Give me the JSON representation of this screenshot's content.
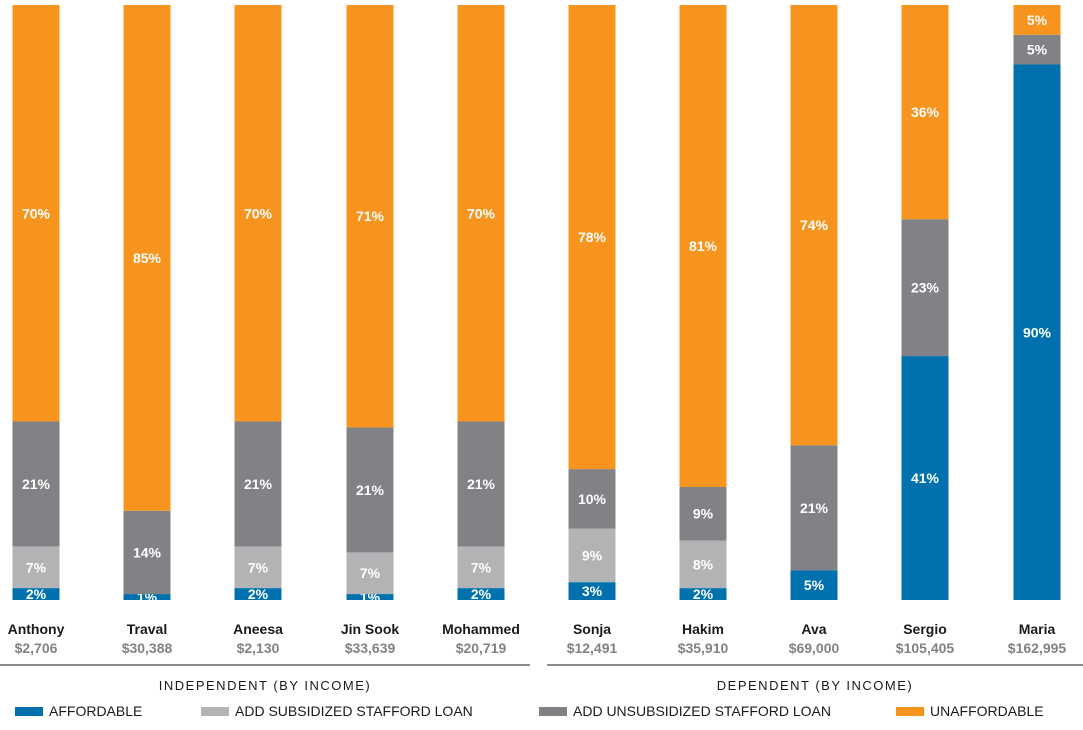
{
  "chart_data": {
    "type": "bar",
    "stacked": true,
    "ylim": [
      0,
      100
    ],
    "series": [
      {
        "name": "AFFORDABLE",
        "key": "affordable",
        "color": "#0071ad",
        "label_color": "#ffffff"
      },
      {
        "name": "ADD SUBSIDIZED STAFFORD LOAN",
        "key": "subsidized",
        "color": "#b1b3b5",
        "label_color": "#ffffff"
      },
      {
        "name": "ADD UNSUBSIDIZED STAFFORD LOAN",
        "key": "unsubsidized",
        "color": "#808285",
        "label_color": "#ffffff"
      },
      {
        "name": "UNAFFORDABLE",
        "key": "unaffordable",
        "color": "#f7941d",
        "label_color": "#ffffff"
      }
    ],
    "students": [
      {
        "name": "Anthony",
        "income": "$2,706",
        "group": "independent",
        "values": [
          2,
          7,
          21,
          70
        ]
      },
      {
        "name": "Traval",
        "income": "$30,388",
        "group": "independent",
        "values": [
          1,
          0,
          14,
          85
        ]
      },
      {
        "name": "Aneesa",
        "income": "$2,130",
        "group": "independent",
        "values": [
          2,
          7,
          21,
          70
        ]
      },
      {
        "name": "Jin Sook",
        "income": "$33,639",
        "group": "independent",
        "values": [
          1,
          7,
          21,
          71
        ]
      },
      {
        "name": "Mohammed",
        "income": "$20,719",
        "group": "independent",
        "values": [
          2,
          7,
          21,
          70
        ]
      },
      {
        "name": "Sonja",
        "income": "$12,491",
        "group": "dependent",
        "values": [
          3,
          9,
          10,
          78
        ]
      },
      {
        "name": "Hakim",
        "income": "$35,910",
        "group": "dependent",
        "values": [
          2,
          8,
          9,
          81
        ]
      },
      {
        "name": "Ava",
        "income": "$69,000",
        "group": "dependent",
        "values": [
          5,
          0,
          21,
          74
        ]
      },
      {
        "name": "Sergio",
        "income": "$105,405",
        "group": "dependent",
        "values": [
          41,
          0,
          23,
          36
        ]
      },
      {
        "name": "Maria",
        "income": "$162,995",
        "group": "dependent",
        "values": [
          90,
          0,
          5,
          5
        ]
      }
    ],
    "groups": [
      {
        "key": "independent",
        "label": "INDEPENDENT (BY INCOME)"
      },
      {
        "key": "dependent",
        "label": "DEPENDENT (BY INCOME)"
      }
    ]
  }
}
